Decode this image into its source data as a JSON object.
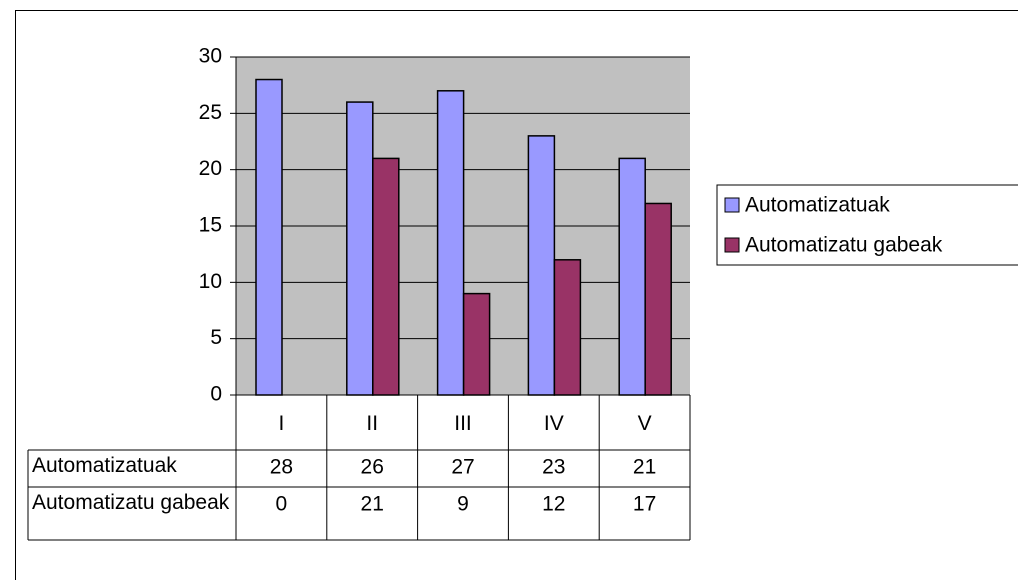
{
  "chart_data": {
    "type": "bar",
    "categories": [
      "I",
      "II",
      "III",
      "IV",
      "V"
    ],
    "series": [
      {
        "name": "Automatizatuak",
        "color": "#9999ff",
        "values": [
          28,
          26,
          27,
          23,
          21
        ]
      },
      {
        "name": "Automatizatu gabeak",
        "color": "#993366",
        "values": [
          0,
          21,
          9,
          12,
          17
        ]
      }
    ],
    "ylim": [
      0,
      30
    ],
    "yticks": [
      0,
      5,
      10,
      15,
      20,
      25,
      30
    ],
    "grid": true,
    "legend": "right"
  }
}
